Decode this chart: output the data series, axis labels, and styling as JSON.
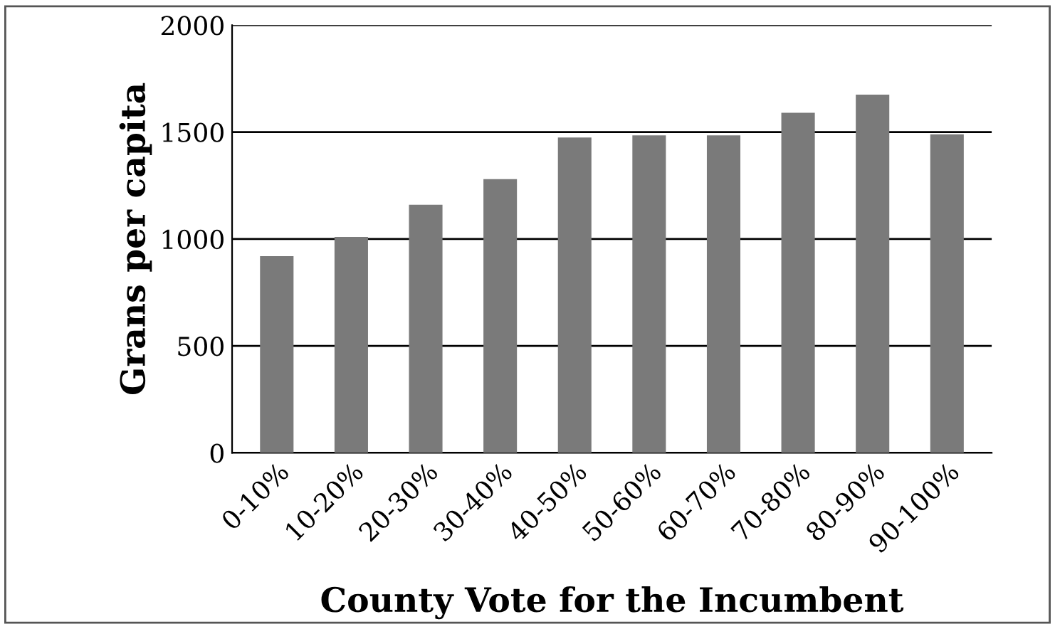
{
  "chart_data": {
    "type": "bar",
    "xlabel": "County Vote for the Incumbent",
    "ylabel": "Grans per capita",
    "categories": [
      "0-10%",
      "10-20%",
      "20-30%",
      "30-40%",
      "40-50%",
      "50-60%",
      "60-70%",
      "70-80%",
      "80-90%",
      "90-100%"
    ],
    "values": [
      920,
      1010,
      1160,
      1280,
      1475,
      1485,
      1485,
      1590,
      1675,
      1490
    ],
    "color": "#7a7a7a",
    "ylim": [
      0,
      2000
    ],
    "yticks": [
      0,
      500,
      1000,
      1500,
      2000
    ],
    "grid": "y"
  }
}
